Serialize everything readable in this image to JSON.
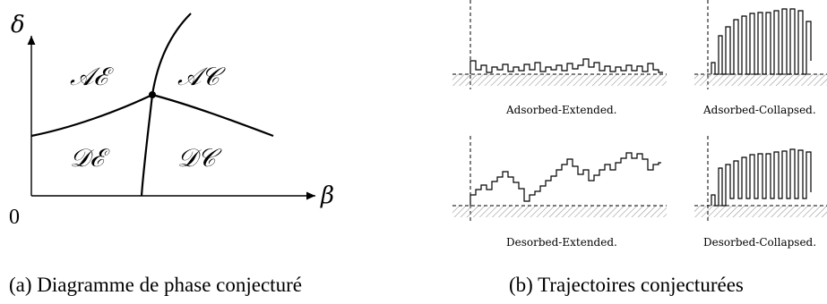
{
  "phase_diagram": {
    "y_axis_label": "δ",
    "x_axis_label": "β",
    "origin_label": "0",
    "regions": {
      "ae": "𝒜ℰ",
      "ac": "𝒜𝒞",
      "de": "𝒟ℰ",
      "dc": "𝒟𝒞"
    },
    "caption": "(a) Diagramme de phase conjecturé"
  },
  "trajectories": {
    "adsorbed_extended": "Adsorbed-Extended.",
    "adsorbed_collapsed": "Adsorbed-Collapsed.",
    "desorbed_extended": "Desorbed-Extended.",
    "desorbed_collapsed": "Desorbed-Collapsed.",
    "caption": "(b) Trajectoires conjecturées"
  }
}
